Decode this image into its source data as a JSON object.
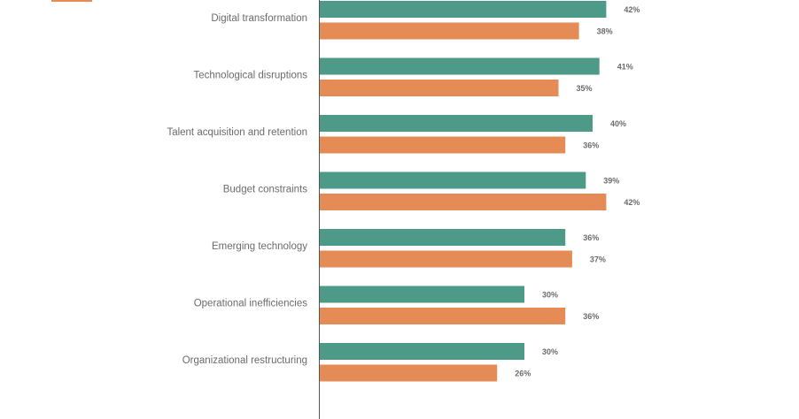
{
  "chart_data": {
    "type": "bar",
    "orientation": "horizontal",
    "categories": [
      "Digital transformation",
      "Technological disruptions",
      "Talent acquisition and retention",
      "Budget constraints",
      "Emerging technology",
      "Operational inefficiencies",
      "Organizational restructuring"
    ],
    "series": [
      {
        "name": "",
        "color": "#4e9a89",
        "values": [
          42,
          41,
          40,
          39,
          36,
          30,
          30
        ],
        "labels": [
          "42%",
          "41%",
          "40%",
          "39%",
          "36%",
          "30%",
          "30%"
        ]
      },
      {
        "name": "",
        "color": "#e58b55",
        "values": [
          38,
          35,
          36,
          42,
          37,
          36,
          26
        ],
        "labels": [
          "38%",
          "35%",
          "36%",
          "42%",
          "37%",
          "36%",
          "26%"
        ]
      }
    ],
    "value_unit": "%",
    "xlim": [
      0,
      55
    ],
    "legend_color": "#e58b55"
  }
}
